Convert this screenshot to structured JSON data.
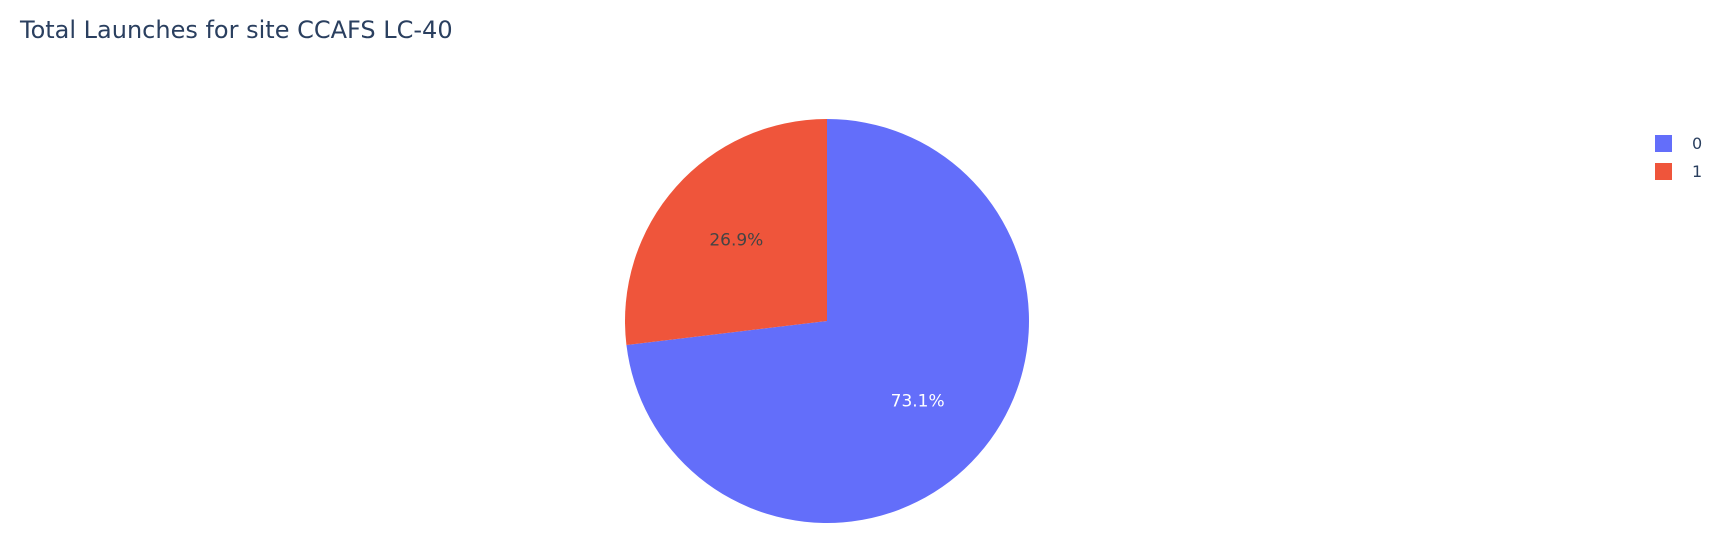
{
  "chart_data": {
    "type": "pie",
    "title": "Total Launches for site CCAFS LC-40",
    "labels": [
      "0",
      "1"
    ],
    "values": [
      73.1,
      26.9
    ],
    "percent_labels": [
      "73.1%",
      "26.9%"
    ],
    "colors": [
      "#636efa",
      "#ef553b"
    ],
    "label_colors": [
      "#ffffff",
      "#444444"
    ],
    "legend_placement": "top-right"
  }
}
